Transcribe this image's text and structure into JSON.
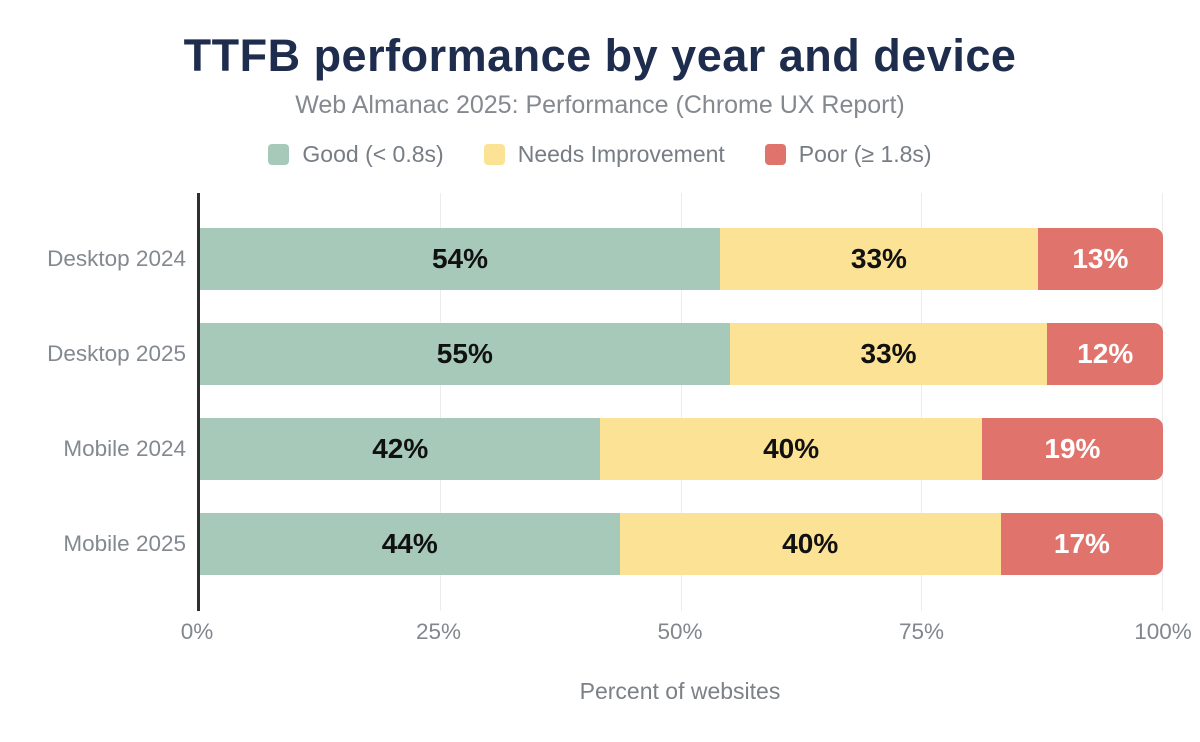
{
  "header": {
    "title": "TTFB performance by year and device",
    "subtitle": "Web Almanac 2025: Performance (Chrome UX Report)"
  },
  "colors": {
    "title": "#1e2c4d",
    "axis_line": "#2f2f2f",
    "gridline": "#ececec",
    "muted_text": "#83898f"
  },
  "chart_data": {
    "type": "bar",
    "orientation": "horizontal",
    "stacked": true,
    "title": "TTFB performance by year and device",
    "subtitle": "Web Almanac 2025: Performance (Chrome UX Report)",
    "categories": [
      "Desktop 2024",
      "Desktop 2025",
      "Mobile 2024",
      "Mobile 2025"
    ],
    "series": [
      {
        "name": "Good (< 0.8s)",
        "color": "#a6c9b9",
        "label_color": "#111111",
        "values": [
          54,
          55,
          42,
          44
        ]
      },
      {
        "name": "Needs Improvement",
        "color": "#fce294",
        "label_color": "#111111",
        "values": [
          33,
          33,
          40,
          40
        ]
      },
      {
        "name": "Poor (≥ 1.8s)",
        "color": "#e0746c",
        "label_color": "#ffffff",
        "values": [
          13,
          12,
          19,
          17
        ]
      }
    ],
    "value_label_format": "{v}%",
    "xlabel": "Percent of websites",
    "x_ticks": [
      0,
      25,
      50,
      75,
      100
    ],
    "x_tick_labels": [
      "0%",
      "25%",
      "50%",
      "75%",
      "100%"
    ],
    "xlim": [
      0,
      100
    ],
    "grid": true,
    "legend_position": "top"
  },
  "layout_note_bar_tops": [
    35,
    130,
    225,
    320
  ]
}
